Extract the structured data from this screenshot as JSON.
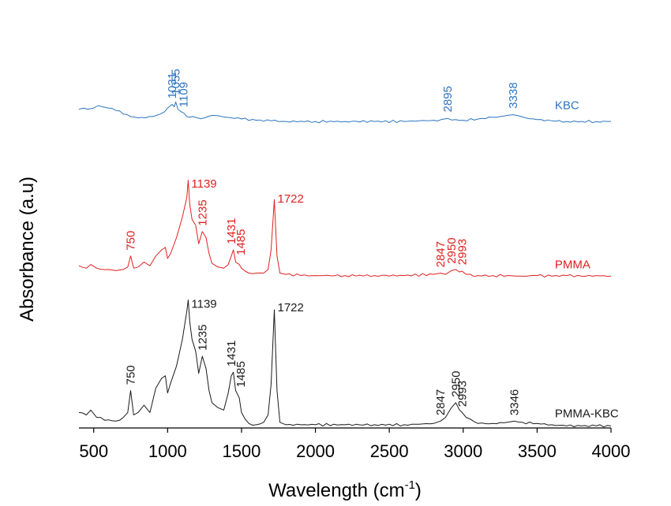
{
  "chart_data": {
    "type": "line",
    "xlabel": "Wavelength (cm",
    "xlabel_sup": "-1",
    "xlabel_suffix": ")",
    "ylabel": "Absorbance (a.u)",
    "xlim": [
      400,
      4000
    ],
    "ylim": [
      0,
      3.3
    ],
    "xticks": [
      500,
      1000,
      1500,
      2000,
      2500,
      3000,
      3500,
      4000
    ],
    "grid": false,
    "series": [
      {
        "name": "KBC",
        "color": "#2e75c0",
        "x": [
          400,
          430,
          460,
          500,
          530,
          560,
          600,
          650,
          700,
          750,
          800,
          850,
          900,
          950,
          980,
          1000,
          1031,
          1045,
          1055,
          1070,
          1090,
          1109,
          1130,
          1150,
          1170,
          1200,
          1250,
          1300,
          1350,
          1400,
          1450,
          1500,
          1600,
          1700,
          1800,
          2000,
          2200,
          2400,
          2600,
          2700,
          2800,
          2850,
          2895,
          2950,
          3000,
          3100,
          3200,
          3280,
          3338,
          3380,
          3420,
          3500,
          3600,
          3700,
          3800,
          3900,
          4000
        ],
        "y": [
          2.6,
          2.61,
          2.6,
          2.61,
          2.63,
          2.62,
          2.61,
          2.59,
          2.56,
          2.54,
          2.53,
          2.53,
          2.54,
          2.56,
          2.58,
          2.61,
          2.64,
          2.62,
          2.66,
          2.6,
          2.58,
          2.57,
          2.54,
          2.535,
          2.54,
          2.53,
          2.53,
          2.55,
          2.545,
          2.535,
          2.525,
          2.52,
          2.51,
          2.505,
          2.5,
          2.5,
          2.5,
          2.5,
          2.5,
          2.505,
          2.51,
          2.515,
          2.525,
          2.515,
          2.51,
          2.52,
          2.535,
          2.545,
          2.555,
          2.545,
          2.53,
          2.515,
          2.505,
          2.5,
          2.5,
          2.5,
          2.5
        ]
      },
      {
        "name": "PMMA",
        "color": "#e02020",
        "x": [
          400,
          450,
          480,
          520,
          600,
          650,
          700,
          730,
          750,
          770,
          800,
          840,
          880,
          920,
          960,
          985,
          1000,
          1020,
          1060,
          1100,
          1130,
          1139,
          1150,
          1165,
          1190,
          1210,
          1235,
          1260,
          1280,
          1300,
          1340,
          1380,
          1410,
          1431,
          1445,
          1460,
          1485,
          1500,
          1550,
          1600,
          1650,
          1680,
          1700,
          1722,
          1740,
          1760,
          1800,
          1900,
          2000,
          2200,
          2400,
          2600,
          2800,
          2847,
          2880,
          2920,
          2950,
          2975,
          2993,
          3020,
          3100,
          3200,
          3300,
          3400,
          3500,
          3600,
          3700,
          3800,
          3900,
          4000
        ],
        "y": [
          1.32,
          1.3,
          1.33,
          1.3,
          1.29,
          1.28,
          1.29,
          1.31,
          1.4,
          1.3,
          1.31,
          1.35,
          1.32,
          1.4,
          1.45,
          1.47,
          1.38,
          1.42,
          1.55,
          1.72,
          1.88,
          2.02,
          1.82,
          1.7,
          1.65,
          1.5,
          1.6,
          1.55,
          1.42,
          1.34,
          1.31,
          1.3,
          1.33,
          1.4,
          1.45,
          1.35,
          1.33,
          1.3,
          1.26,
          1.26,
          1.26,
          1.29,
          1.45,
          1.86,
          1.4,
          1.26,
          1.25,
          1.24,
          1.24,
          1.24,
          1.24,
          1.24,
          1.25,
          1.26,
          1.25,
          1.28,
          1.29,
          1.27,
          1.275,
          1.25,
          1.24,
          1.24,
          1.24,
          1.235,
          1.24,
          1.235,
          1.24,
          1.235,
          1.24,
          1.235
        ]
      },
      {
        "name": "PMMA-KBC",
        "color": "#1a1a1a",
        "x": [
          400,
          450,
          480,
          520,
          600,
          650,
          700,
          730,
          750,
          770,
          800,
          840,
          880,
          920,
          960,
          985,
          1000,
          1020,
          1060,
          1100,
          1130,
          1139,
          1150,
          1165,
          1190,
          1210,
          1235,
          1260,
          1280,
          1300,
          1340,
          1380,
          1410,
          1431,
          1445,
          1460,
          1485,
          1500,
          1550,
          1600,
          1650,
          1680,
          1700,
          1722,
          1740,
          1760,
          1800,
          1900,
          2000,
          2200,
          2400,
          2600,
          2800,
          2847,
          2880,
          2920,
          2950,
          2975,
          2993,
          3020,
          3100,
          3200,
          3300,
          3346,
          3400,
          3500,
          3600,
          3700,
          3800,
          3900,
          4000
        ],
        "y": [
          0.12,
          0.1,
          0.14,
          0.08,
          0.06,
          0.05,
          0.08,
          0.12,
          0.3,
          0.1,
          0.12,
          0.18,
          0.12,
          0.32,
          0.4,
          0.42,
          0.28,
          0.36,
          0.5,
          0.72,
          0.95,
          1.04,
          0.86,
          0.72,
          0.62,
          0.44,
          0.58,
          0.48,
          0.3,
          0.2,
          0.16,
          0.14,
          0.28,
          0.42,
          0.45,
          0.3,
          0.24,
          0.12,
          0.03,
          0.02,
          0.04,
          0.1,
          0.35,
          0.96,
          0.3,
          0.04,
          0.02,
          0.02,
          0.02,
          0.02,
          0.02,
          0.02,
          0.03,
          0.05,
          0.08,
          0.16,
          0.2,
          0.14,
          0.12,
          0.08,
          0.03,
          0.03,
          0.04,
          0.05,
          0.04,
          0.03,
          0.02,
          0.01,
          0.01,
          0.01,
          0.01
        ]
      }
    ],
    "series_labels": [
      {
        "series": "KBC",
        "text": "KBC",
        "x": 3620,
        "y": 2.6
      },
      {
        "series": "PMMA",
        "text": "PMMA",
        "x": 3620,
        "y": 1.3
      },
      {
        "series": "PMMA-KBC",
        "text": "PMMA-KBC",
        "x": 3620,
        "y": 0.08
      }
    ],
    "annotations": [
      {
        "series": "KBC",
        "text": "1031",
        "x": 1031,
        "y": 2.66,
        "rotate": true
      },
      {
        "series": "KBC",
        "text": "1055",
        "x": 1055,
        "y": 2.69,
        "rotate": true
      },
      {
        "series": "KBC",
        "text": "1109",
        "x": 1109,
        "y": 2.59,
        "rotate": true
      },
      {
        "series": "KBC",
        "text": "2895",
        "x": 2895,
        "y": 2.55,
        "rotate": true
      },
      {
        "series": "KBC",
        "text": "3338",
        "x": 3338,
        "y": 2.58,
        "rotate": true
      },
      {
        "series": "PMMA",
        "text": "750",
        "x": 750,
        "y": 1.42,
        "rotate": true
      },
      {
        "series": "PMMA",
        "text": "1139",
        "x": 1139,
        "y": 1.99,
        "rotate": false
      },
      {
        "series": "PMMA",
        "text": "1235",
        "x": 1235,
        "y": 1.62,
        "rotate": true
      },
      {
        "series": "PMMA",
        "text": "1431",
        "x": 1431,
        "y": 1.47,
        "rotate": true
      },
      {
        "series": "PMMA",
        "text": "1485",
        "x": 1495,
        "y": 1.38,
        "rotate": true
      },
      {
        "series": "PMMA",
        "text": "1722",
        "x": 1722,
        "y": 1.87,
        "rotate": false
      },
      {
        "series": "PMMA",
        "text": "2847",
        "x": 2847,
        "y": 1.28,
        "rotate": true
      },
      {
        "series": "PMMA",
        "text": "2950",
        "x": 2920,
        "y": 1.31,
        "rotate": true
      },
      {
        "series": "PMMA",
        "text": "2993",
        "x": 2993,
        "y": 1.3,
        "rotate": true
      },
      {
        "series": "KBC",
        "text": "",
        "x": 0,
        "y": 0,
        "rotate": false
      },
      {
        "series": "PMMA-KBC",
        "text": "750",
        "x": 750,
        "y": 0.32,
        "rotate": true
      },
      {
        "series": "PMMA-KBC",
        "text": "1139",
        "x": 1139,
        "y": 1.01,
        "rotate": false
      },
      {
        "series": "PMMA-KBC",
        "text": "1235",
        "x": 1235,
        "y": 0.6,
        "rotate": true
      },
      {
        "series": "PMMA-KBC",
        "text": "1431",
        "x": 1431,
        "y": 0.47,
        "rotate": true
      },
      {
        "series": "PMMA-KBC",
        "text": "1485",
        "x": 1495,
        "y": 0.3,
        "rotate": true
      },
      {
        "series": "PMMA-KBC",
        "text": "1722",
        "x": 1722,
        "y": 0.98,
        "rotate": false
      },
      {
        "series": "PMMA-KBC",
        "text": "2847",
        "x": 2847,
        "y": 0.07,
        "rotate": true
      },
      {
        "series": "PMMA-KBC",
        "text": "2950",
        "x": 2950,
        "y": 0.22,
        "rotate": true
      },
      {
        "series": "PMMA-KBC",
        "text": "2993",
        "x": 2993,
        "y": 0.14,
        "rotate": true
      },
      {
        "series": "PMMA-KBC",
        "text": "3346",
        "x": 3346,
        "y": 0.07,
        "rotate": true
      }
    ]
  }
}
